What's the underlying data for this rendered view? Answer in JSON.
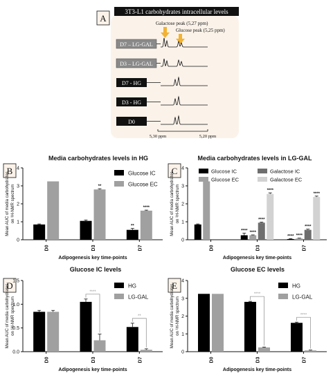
{
  "panel_labels": [
    "A",
    "B",
    "C",
    "D",
    "E"
  ],
  "nmr_panel": {
    "title": "3T3-L1 carbohydrates intracellular levels",
    "annotations": [
      "Galactose peak (5,27 ppm)",
      "Glucose peak (5,25 ppm)"
    ],
    "rows": [
      "D7 – LG-GAL",
      "D3 – LG-GAL",
      "D7 - HG",
      "D3 - HG",
      "D0"
    ],
    "axis_ticks": [
      "5,30 ppm",
      "5,20 ppm"
    ],
    "colors": {
      "frame_bg": "#fbf3ea",
      "title_bg": "#111111",
      "arrow": "#f2b233",
      "row_gray": "#8a8a8a",
      "row_black": "#111111"
    }
  },
  "chart_data": [
    {
      "id": "B",
      "type": "bar",
      "title": "Media carbohydrates levels in HG",
      "xlabel": "Adipogenesis key time-points",
      "ylabel_lines": [
        "Mean AUC of media carbohydrates",
        "on ¹H-NMR spectrum"
      ],
      "categories": [
        "D0",
        "D3",
        "D7"
      ],
      "ylim": [
        0,
        4
      ],
      "yticks": [
        "0",
        "1",
        "2",
        "3",
        "4"
      ],
      "legend_position": "top-right",
      "series": [
        {
          "name": "Glucose IC",
          "color": "#000000",
          "values": [
            0.85,
            1.05,
            0.55
          ],
          "errors": [
            0.03,
            0.05,
            0.08
          ],
          "stars": [
            "",
            "",
            "**"
          ]
        },
        {
          "name": "Glucose EC",
          "color": "#a0a0a0",
          "values": [
            3.25,
            2.8,
            1.62
          ],
          "errors": [
            0,
            0.04,
            0.03
          ],
          "stars": [
            "",
            "**",
            "****"
          ]
        }
      ]
    },
    {
      "id": "C",
      "type": "bar",
      "title": "Media carbohydrates levels in LG-GAL",
      "xlabel": "Adipogenesis key time-points",
      "ylabel_lines": [
        "Mean AUC of media carbohydrates",
        "on ¹H-NMR spectrum"
      ],
      "categories": [
        "D0",
        "D3",
        "D7"
      ],
      "ylim": [
        0,
        4
      ],
      "yticks": [
        "0",
        "1",
        "2",
        "3",
        "4"
      ],
      "legend_position": "top",
      "series": [
        {
          "name": "Glucose IC",
          "color": "#000000",
          "values": [
            0.85,
            0.25,
            0.04
          ],
          "errors": [
            0.03,
            0.12,
            0.02
          ],
          "stars": [
            "",
            "****",
            "****"
          ]
        },
        {
          "name": "Glucose EC",
          "color": "#a0a0a0",
          "values": [
            3.25,
            0.25,
            0.07
          ],
          "errors": [
            0,
            0.02,
            0.02
          ],
          "stars": [
            "",
            "****",
            "****"
          ]
        },
        {
          "name": "Galactose IC",
          "color": "#6e6e6e",
          "values": [
            0,
            0.95,
            0.55
          ],
          "errors": [
            0,
            0.03,
            0.04
          ],
          "stars": [
            "",
            "****",
            "****"
          ]
        },
        {
          "name": "Galactose EC",
          "color": "#d2d2d2",
          "values": [
            0,
            2.55,
            2.38
          ],
          "errors": [
            0,
            0.06,
            0.05
          ],
          "stars": [
            "",
            "****",
            "****"
          ]
        }
      ]
    },
    {
      "id": "D",
      "type": "bar",
      "title": "Glucose IC levels",
      "xlabel": "Adipogenesis key time-points",
      "ylabel_lines": [
        "Mean AUC of media carbohydrates",
        "on ¹H-NMR spectrum"
      ],
      "categories": [
        "D0",
        "D3",
        "D7"
      ],
      "ylim": [
        0,
        1.5
      ],
      "yticks": [
        "0.0",
        "0.5",
        "1.0",
        "1.5"
      ],
      "legend_position": "top-right",
      "series": [
        {
          "name": "HG",
          "color": "#000000",
          "values": [
            0.84,
            1.05,
            0.52
          ],
          "errors": [
            0.03,
            0.06,
            0.08
          ]
        },
        {
          "name": "LG-GAL",
          "color": "#a0a0a0",
          "values": [
            0.84,
            0.24,
            0.04
          ],
          "errors": [
            0.03,
            0.13,
            0.02
          ]
        }
      ],
      "brackets": [
        {
          "category": 1,
          "label": "****"
        },
        {
          "category": 2,
          "label": "**"
        }
      ]
    },
    {
      "id": "E",
      "type": "bar",
      "title": "Glucose EC levels",
      "xlabel": "Adipogenesis key time-points",
      "ylabel_lines": [
        "Mean AUC of media carbohydrates",
        "on ¹H-NMR spectrum"
      ],
      "categories": [
        "D0",
        "D3",
        "D7"
      ],
      "ylim": [
        0,
        4
      ],
      "yticks": [
        "0",
        "1",
        "2",
        "3",
        "4"
      ],
      "legend_position": "top-right",
      "series": [
        {
          "name": "HG",
          "color": "#000000",
          "values": [
            3.25,
            2.8,
            1.62
          ],
          "errors": [
            0,
            0.03,
            0.04
          ]
        },
        {
          "name": "LG-GAL",
          "color": "#a0a0a0",
          "values": [
            3.25,
            0.24,
            0.07
          ],
          "errors": [
            0,
            0.02,
            0.02
          ]
        }
      ],
      "brackets": [
        {
          "category": 1,
          "label": "****"
        },
        {
          "category": 2,
          "label": "****"
        }
      ]
    }
  ]
}
